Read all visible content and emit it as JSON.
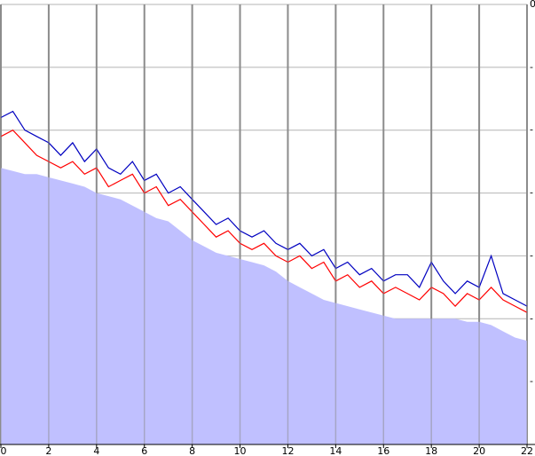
{
  "chart_data": {
    "type": "line",
    "grid": true,
    "x": [
      0,
      0.5,
      1,
      1.5,
      2,
      2.5,
      3,
      3.5,
      4,
      4.5,
      5,
      5.5,
      6,
      6.5,
      7,
      7.5,
      8,
      8.5,
      9,
      9.5,
      10,
      10.5,
      11,
      11.5,
      12,
      12.5,
      13,
      13.5,
      14,
      14.5,
      15,
      15.5,
      16,
      16.5,
      17,
      17.5,
      18,
      18.5,
      19,
      19.5,
      20,
      20.5,
      21,
      21.5,
      22
    ],
    "xlim": [
      0,
      22
    ],
    "xticks": [
      0,
      2,
      4,
      6,
      8,
      10,
      12,
      14,
      16,
      18,
      20,
      22
    ],
    "ylim": [
      -70,
      0
    ],
    "yticks": [
      0,
      {
        "value": -10,
        "label": "-"
      },
      {
        "value": -20,
        "label": "-"
      },
      {
        "value": -30,
        "label": "-"
      },
      {
        "value": -40,
        "label": "-"
      },
      {
        "value": -50,
        "label": "-"
      },
      {
        "value": -60,
        "label": "-"
      },
      {
        "value": -70,
        "label": "-"
      }
    ],
    "series": [
      {
        "color": "#c0c0ff",
        "fill": true,
        "values": [
          -26,
          -26.5,
          -27,
          -27,
          -27.5,
          -28,
          -28.5,
          -29,
          -30,
          -30.5,
          -31,
          -32,
          -33,
          -34,
          -34.5,
          -36,
          -37.5,
          -38.5,
          -39.5,
          -40,
          -40.5,
          -41,
          -41.5,
          -42.5,
          -44,
          -45,
          -46,
          -47,
          -47.5,
          -48,
          -48.5,
          -49,
          -49.5,
          -50,
          -50,
          -50,
          -50,
          -50,
          -50,
          -50.5,
          -50.5,
          -51,
          -52,
          -53,
          -53.5
        ]
      },
      {
        "color": "#ff0000",
        "values": [
          -21,
          -20,
          -22,
          -24,
          -25,
          -26,
          -25,
          -27,
          -26,
          -29,
          -28,
          -27,
          -30,
          -29,
          -32,
          -31,
          -33,
          -35,
          -37,
          -36,
          -38,
          -39,
          -38,
          -40,
          -41,
          -40,
          -42,
          -41,
          -44,
          -43,
          -45,
          -44,
          -46,
          -45,
          -46,
          -47,
          -45,
          -46,
          -48,
          -46,
          -47,
          -45,
          -47,
          -48,
          -49
        ]
      },
      {
        "color": "#0000c0",
        "values": [
          -18,
          -17,
          -20,
          -21,
          -22,
          -24,
          -22,
          -25,
          -23,
          -26,
          -27,
          -25,
          -28,
          -27,
          -30,
          -29,
          -31,
          -33,
          -35,
          -34,
          -36,
          -37,
          -36,
          -38,
          -39,
          -38,
          -40,
          -39,
          -42,
          -41,
          -43,
          -42,
          -44,
          -43,
          -43,
          -45,
          -41,
          -44,
          -46,
          -44,
          -45,
          -40,
          -46,
          -47,
          -48
        ]
      }
    ]
  }
}
